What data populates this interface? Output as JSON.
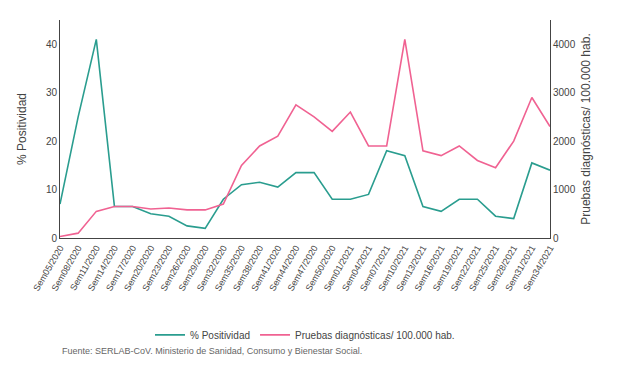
{
  "chart_data": {
    "type": "line",
    "categories": [
      "Sem05/2020",
      "Sem08/2020",
      "Sem11/2020",
      "Sem14/2020",
      "Sem17/2020",
      "Sem20/2020",
      "Sem23/2020",
      "Sem26/2020",
      "Sem29/2020",
      "Sem32/2020",
      "Sem35/2020",
      "Sem38/2020",
      "Sem41/2020",
      "Sem44/2020",
      "Sem47/2020",
      "Sem50/2020",
      "Sem01/2021",
      "Sem04/2021",
      "Sem07/2021",
      "Sem10/2021",
      "Sem13/2021",
      "Sem16/2021",
      "Sem19/2021",
      "Sem22/2021",
      "Sem25/2021",
      "Sem28/2021",
      "Sem31/2021",
      "Sem34/2021"
    ],
    "series": [
      {
        "name": "% Positividad",
        "color": "#2a9d8f",
        "values": [
          7,
          25,
          41,
          6.5,
          6.5,
          5,
          4.5,
          2.5,
          2,
          8,
          11,
          11.5,
          10.5,
          13.5,
          13.5,
          8,
          8,
          9,
          18,
          17,
          6.5,
          5.5,
          8,
          8,
          4.5,
          4,
          15.5,
          14
        ]
      },
      {
        "name": "Pruebas diagnósticas/ 100.000 hab.",
        "color": "#f06292",
        "axis": "y2",
        "values": [
          30,
          100,
          550,
          650,
          650,
          600,
          620,
          580,
          580,
          700,
          1500,
          1900,
          2100,
          2750,
          2500,
          2200,
          2600,
          1900,
          1900,
          4100,
          1800,
          1700,
          1900,
          1600,
          1450,
          2000,
          2900,
          2300
        ]
      }
    ],
    "ylabel": "% Positividad",
    "y2label": "Pruebas diagnósticas/ 100.000 hab.",
    "ylim": [
      0,
      45
    ],
    "yticks": [
      0,
      10,
      20,
      30,
      40
    ],
    "y2lim": [
      0,
      4500
    ],
    "y2ticks": [
      0,
      1000,
      2000,
      3000,
      4000
    ],
    "annotations": [
      "Fuente: SERLAB-CoV. Ministerio de Sanidad, Consumo y Bienestar Social."
    ],
    "legend": "bottom",
    "grid": false
  }
}
